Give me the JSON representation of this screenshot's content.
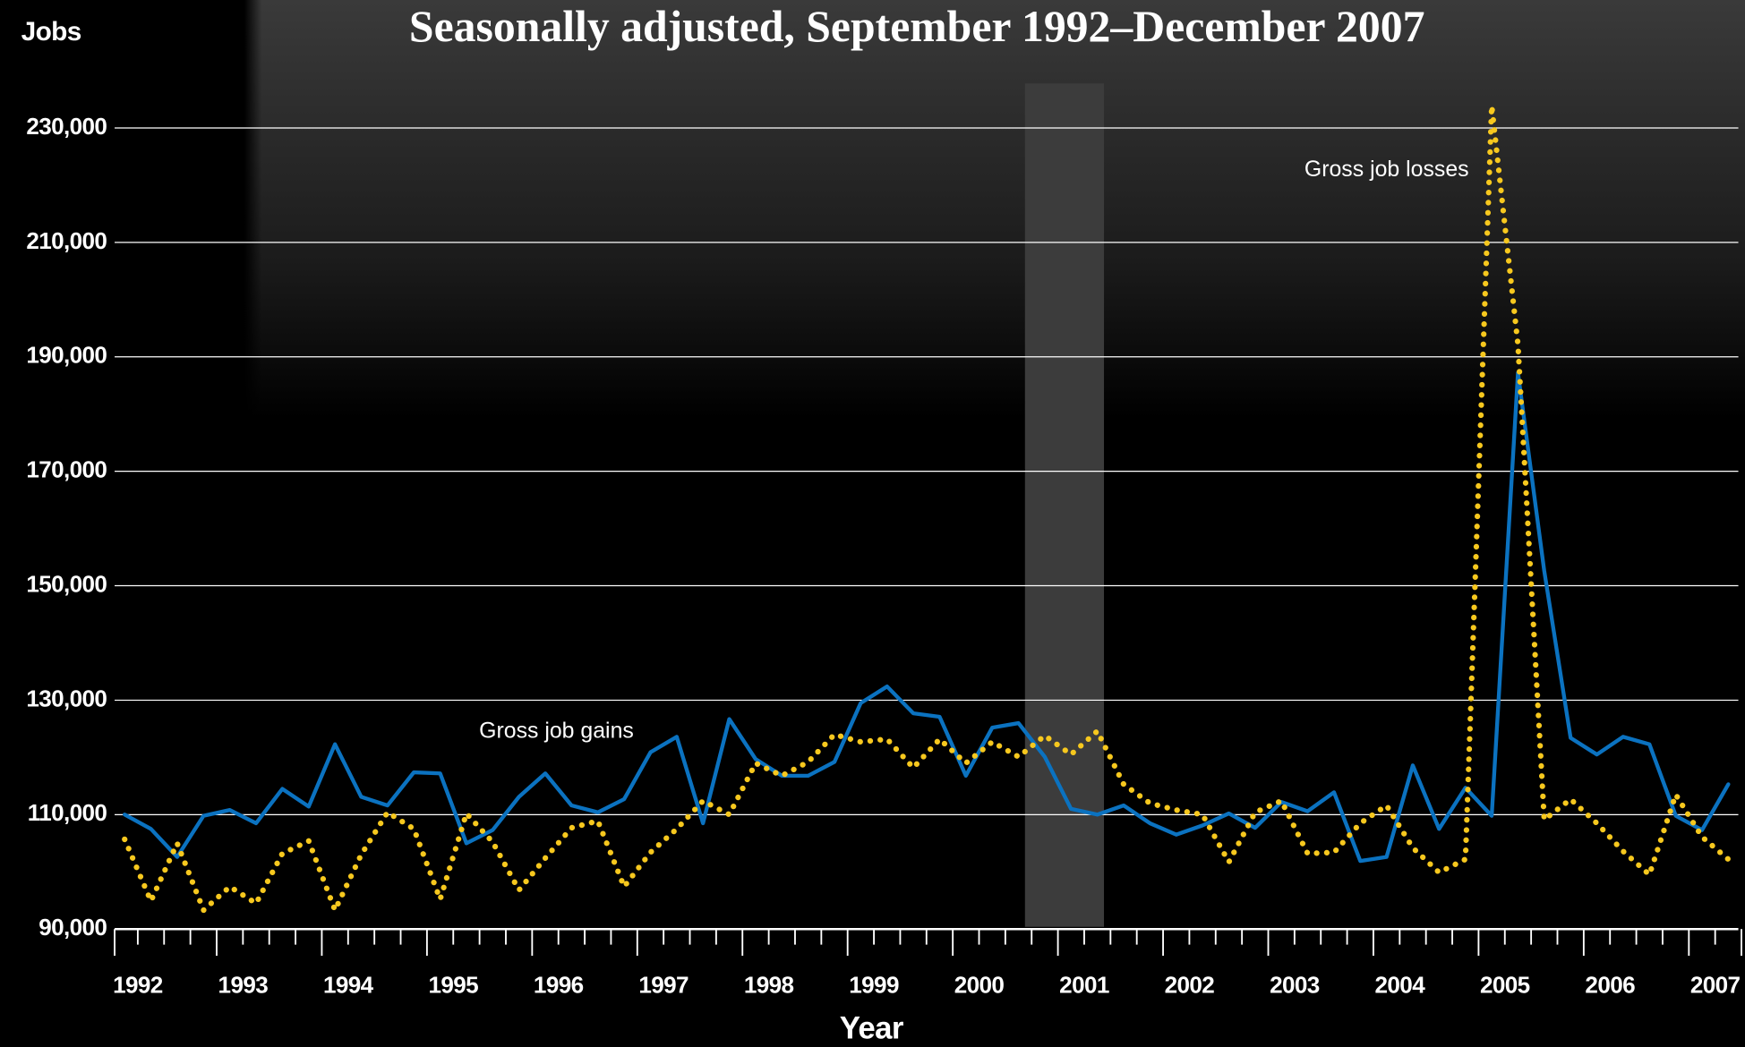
{
  "chart_data": {
    "type": "line",
    "title": "Seasonally adjusted, September 1992–December 2007",
    "y_label": "Jobs",
    "x_label": "Year",
    "categories": [
      "1992",
      null,
      null,
      null,
      "1993",
      null,
      null,
      null,
      "1994",
      null,
      null,
      null,
      "1995",
      null,
      null,
      null,
      "1996",
      null,
      null,
      null,
      "1997",
      null,
      null,
      null,
      "1998",
      null,
      null,
      null,
      "1999",
      null,
      null,
      null,
      "2000",
      null,
      null,
      null,
      "2001",
      null,
      null,
      null,
      "2002",
      null,
      null,
      null,
      "2003",
      null,
      null,
      null,
      "2004",
      null,
      null,
      null,
      "2005",
      null,
      null,
      null,
      "2006",
      null,
      null,
      null,
      "2007",
      null
    ],
    "series": [
      {
        "name": "Gross job gains",
        "color": "#0b72c0",
        "style": "solid",
        "values": [
          110000,
          107500,
          102600,
          109800,
          110800,
          108500,
          114500,
          111400,
          122300,
          113100,
          111600,
          117400,
          117200,
          105000,
          107300,
          113100,
          117200,
          111600,
          110400,
          112700,
          120900,
          123600,
          108500,
          126700,
          119700,
          116800,
          116800,
          119200,
          129500,
          132400,
          127700,
          127100,
          116800,
          125200,
          126000,
          120100,
          111000,
          110000,
          111600,
          108500,
          106500,
          108100,
          110200,
          107700,
          112200,
          110600,
          113900,
          101900,
          102600,
          118600,
          107500,
          114700,
          109800,
          187200,
          152600,
          123400,
          120500,
          123600,
          122300,
          109800,
          107300,
          115300
        ]
      },
      {
        "name": "Gross job losses",
        "color": "#f7c81e",
        "style": "dotted",
        "values": [
          105700,
          94900,
          105000,
          93300,
          97400,
          94500,
          103200,
          105400,
          93300,
          103000,
          110400,
          107500,
          95200,
          110200,
          105200,
          96800,
          102400,
          107700,
          108900,
          97400,
          103400,
          107500,
          112400,
          110000,
          119000,
          116800,
          119200,
          124000,
          122700,
          123200,
          118200,
          123200,
          119000,
          122700,
          120100,
          123800,
          120500,
          124600,
          115300,
          112000,
          110800,
          110000,
          101700,
          110400,
          112400,
          103200,
          103400,
          108500,
          111600,
          104200,
          99900,
          102200,
          233900,
          192100,
          109100,
          112700,
          108500,
          103600,
          99500,
          113500,
          106100,
          102200
        ]
      }
    ],
    "ylim": [
      90000,
      240000
    ],
    "yticks": [
      {
        "value": 90000,
        "label": "90,000"
      },
      {
        "value": 110000,
        "label": "110,000"
      },
      {
        "value": 130000,
        "label": "130,000"
      },
      {
        "value": 150000,
        "label": "150,000"
      },
      {
        "value": 170000,
        "label": "170,000"
      },
      {
        "value": 190000,
        "label": "190,000"
      },
      {
        "value": 210000,
        "label": "210,000"
      },
      {
        "value": 230000,
        "label": "230,000"
      }
    ],
    "grid": true
  }
}
